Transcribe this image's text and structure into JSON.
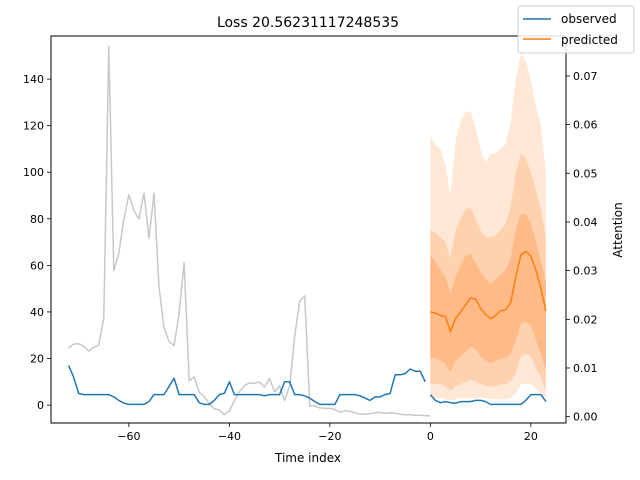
{
  "chart_data": {
    "type": "line",
    "title": "Loss 20.56231117248535",
    "xlabel": "Time index",
    "ylabel": "",
    "y2label": "Attention",
    "xlim": [
      -75.5,
      27
    ],
    "ylim": [
      -7.7,
      158.5
    ],
    "y2lim": [
      -0.0013,
      0.0782
    ],
    "xticks": [
      -60,
      -40,
      -20,
      0,
      20
    ],
    "xtick_labels": [
      "−60",
      "−40",
      "−20",
      "0",
      "20"
    ],
    "yticks": [
      0,
      20,
      40,
      60,
      80,
      100,
      120,
      140
    ],
    "ytick_labels": [
      "0",
      "20",
      "40",
      "60",
      "80",
      "100",
      "120",
      "140"
    ],
    "y2ticks": [
      0.0,
      0.01,
      0.02,
      0.03,
      0.04,
      0.05,
      0.06,
      0.07
    ],
    "y2tick_labels": [
      "0.00",
      "0.01",
      "0.02",
      "0.03",
      "0.04",
      "0.05",
      "0.06",
      "0.07"
    ],
    "grid": false,
    "legend": {
      "position": "top-right",
      "entries": [
        {
          "label": "observed",
          "color": "#1f77b4"
        },
        {
          "label": "predicted",
          "color": "#ff7f0e"
        }
      ]
    },
    "series": [
      {
        "name": "observed",
        "color": "#1f77b4",
        "axis": "left",
        "x": [
          -72,
          -71,
          -70,
          -69,
          -68,
          -67,
          -66,
          -65,
          -64,
          -63,
          -62,
          -61,
          -60,
          -59,
          -58,
          -57,
          -56,
          -55,
          -54,
          -53,
          -52,
          -51,
          -50,
          -49,
          -48,
          -47,
          -46,
          -45,
          -44,
          -43,
          -42,
          -41,
          -40,
          -39,
          -38,
          -37,
          -36,
          -35,
          -34,
          -33,
          -32,
          -31,
          -30,
          -29,
          -28,
          -27,
          -26,
          -25,
          -24,
          -23,
          -22,
          -21,
          -20,
          -19,
          -18,
          -17,
          -16,
          -15,
          -14,
          -13,
          -12,
          -11,
          -10,
          -9,
          -8,
          -7,
          -6,
          -5,
          -4,
          -3,
          -2,
          -1
        ],
        "values": [
          17,
          12,
          5,
          4.5,
          4.5,
          4.5,
          4.5,
          4.5,
          4.5,
          3.5,
          2,
          0.8,
          0.3,
          0.3,
          0.3,
          0.3,
          1.5,
          4.5,
          4.5,
          4.5,
          8,
          11.5,
          4.5,
          4.5,
          4.5,
          4.5,
          1,
          0.3,
          0.3,
          2,
          4.5,
          5,
          10,
          4.5,
          4.5,
          4.5,
          4.5,
          4.5,
          4.5,
          4,
          4.5,
          4.5,
          4.5,
          10,
          10,
          4.5,
          4.5,
          4,
          3,
          1.5,
          0.3,
          0.3,
          0.3,
          0.3,
          4.5,
          4.5,
          4.5,
          4.5,
          4,
          3,
          2,
          3.5,
          3.5,
          4.5,
          5,
          13,
          13,
          13.5,
          15.5,
          14.5,
          14.5,
          10
        ]
      },
      {
        "name": "observed",
        "color": "#1f77b4",
        "axis": "left",
        "x": [
          0,
          1,
          2,
          3,
          4,
          5,
          6,
          7,
          8,
          9,
          10,
          11,
          12,
          13,
          14,
          15,
          16,
          17,
          18,
          19,
          20,
          21,
          22,
          23
        ],
        "values": [
          4.5,
          2,
          1,
          1.5,
          1,
          0.8,
          1.5,
          1.5,
          1.5,
          2,
          2,
          1.5,
          0.3,
          0.3,
          0.3,
          0.3,
          0.3,
          0.3,
          0.3,
          2,
          4.5,
          4.5,
          4.5,
          1.5
        ]
      },
      {
        "name": "predicted",
        "color": "#ff7f0e",
        "axis": "left",
        "x": [
          0,
          1,
          2,
          3,
          4,
          5,
          6,
          7,
          8,
          9,
          10,
          11,
          12,
          13,
          14,
          15,
          16,
          17,
          18,
          19,
          20,
          21,
          22,
          23
        ],
        "values": [
          40,
          39.5,
          38.5,
          38,
          31.5,
          37,
          40,
          43,
          46,
          45.5,
          41.5,
          39,
          37,
          38.5,
          40.5,
          41,
          44,
          55,
          64.5,
          66,
          64,
          58,
          50,
          40.5
        ]
      },
      {
        "name": "",
        "color": "#c8c8c8",
        "axis": "right",
        "x": [
          -72,
          -71,
          -70,
          -69,
          -68,
          -67,
          -66,
          -65,
          -64,
          -63,
          -62,
          -61,
          -60,
          -59,
          -58,
          -57,
          -56,
          -55,
          -54,
          -53,
          -52,
          -51,
          -50,
          -49,
          -48,
          -47,
          -46,
          -45,
          -44,
          -43,
          -42,
          -41,
          -40,
          -39,
          -38,
          -37,
          -36,
          -35,
          -34,
          -33,
          -32,
          -31,
          -30,
          -29,
          -28,
          -27,
          -26,
          -25,
          -24,
          -23,
          -22,
          -21,
          -20,
          -19,
          -18,
          -17,
          -16,
          -15,
          -14,
          -13,
          -12,
          -11,
          -10,
          -9,
          -8,
          -7,
          -6,
          -5,
          -4,
          -3,
          -2,
          -1,
          0
        ],
        "values": [
          0.0141,
          0.0149,
          0.015,
          0.0145,
          0.0135,
          0.0142,
          0.0147,
          0.0202,
          0.0761,
          0.03,
          0.0335,
          0.0406,
          0.0456,
          0.0423,
          0.0406,
          0.0459,
          0.0366,
          0.0459,
          0.0267,
          0.0183,
          0.0154,
          0.0146,
          0.0212,
          0.0316,
          0.0074,
          0.0082,
          0.005,
          0.0041,
          0.0027,
          0.0016,
          0.0014,
          0.0004,
          0.0012,
          0.0033,
          0.0051,
          0.0064,
          0.0069,
          0.0069,
          0.0071,
          0.0061,
          0.0078,
          0.0051,
          0.0063,
          0.0033,
          0.0064,
          0.0166,
          0.0237,
          0.0248,
          0.0022,
          0.0022,
          0.0018,
          0.0017,
          0.0017,
          0.0015,
          0.0009,
          0.0012,
          0.0011,
          0.0008,
          0.0005,
          0.0005,
          0.0006,
          0.0008,
          0.0009,
          0.0007,
          0.0008,
          0.0007,
          0.0005,
          0.0004,
          0.0004,
          0.0003,
          0.0003,
          0.0002,
          0.0002
        ]
      }
    ],
    "bands": [
      {
        "color": "#ffe8d6",
        "x": [
          0,
          1,
          2,
          3,
          4,
          5,
          6,
          7,
          8,
          9,
          10,
          11,
          12,
          13,
          14,
          15,
          16,
          17,
          18,
          19,
          20,
          21,
          22,
          23
        ],
        "upper": [
          115,
          112,
          110,
          103,
          90,
          113,
          122,
          126,
          126,
          119,
          110,
          104,
          108,
          108,
          110,
          112,
          122,
          140,
          151,
          148,
          140,
          128,
          120,
          100
        ],
        "lower": [
          3,
          3,
          3,
          2.5,
          2,
          2.5,
          3,
          3,
          3,
          3,
          3,
          3,
          2.5,
          2.5,
          2.5,
          2.5,
          3,
          5,
          9,
          9,
          9,
          7,
          5,
          3
        ]
      },
      {
        "color": "#ffd1ae",
        "x": [
          0,
          1,
          2,
          3,
          4,
          5,
          6,
          7,
          8,
          9,
          10,
          11,
          12,
          13,
          14,
          15,
          16,
          17,
          18,
          19,
          20,
          21,
          22,
          23
        ],
        "upper": [
          75,
          74,
          72,
          70,
          63,
          75,
          80,
          84,
          85,
          80,
          75,
          72,
          72,
          73,
          75,
          78,
          85,
          100,
          108,
          106,
          100,
          92,
          84,
          72
        ],
        "lower": [
          9,
          9,
          9,
          8,
          6,
          8,
          9,
          10,
          11,
          10,
          9,
          8,
          8,
          8,
          9,
          9,
          10,
          14,
          21,
          22,
          21,
          16,
          12,
          6
        ]
      },
      {
        "color": "#ffba87",
        "x": [
          0,
          1,
          2,
          3,
          4,
          5,
          6,
          7,
          8,
          9,
          10,
          11,
          12,
          13,
          14,
          15,
          16,
          17,
          18,
          19,
          20,
          21,
          22,
          23
        ],
        "upper": [
          64,
          62,
          58,
          55,
          48,
          55,
          60,
          64,
          65,
          61,
          57,
          54,
          52,
          54,
          56,
          58,
          63,
          75,
          82,
          82,
          78,
          70,
          62,
          52
        ],
        "lower": [
          20,
          20,
          19,
          18,
          14,
          19,
          21,
          23,
          25,
          24,
          21,
          19,
          18,
          19,
          20,
          20,
          22,
          28,
          35,
          36,
          34,
          28,
          22,
          15
        ]
      }
    ]
  }
}
